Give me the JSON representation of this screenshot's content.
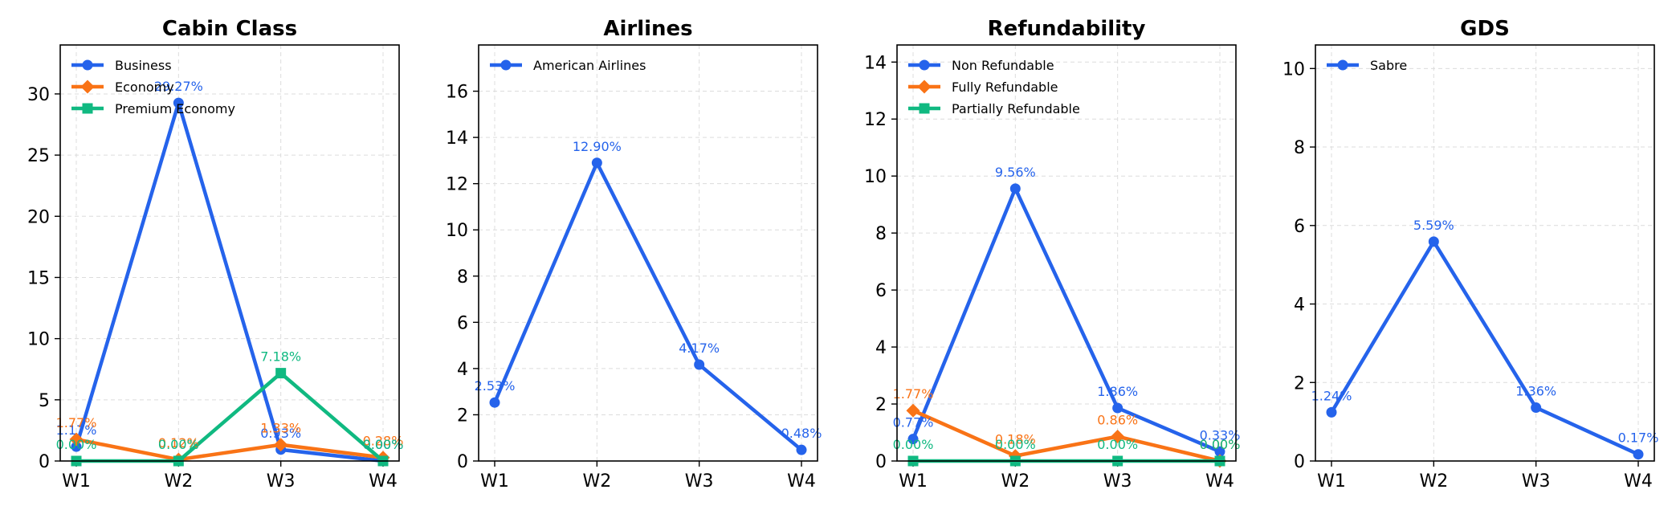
{
  "chart_data": [
    {
      "type": "line",
      "title": "Cabin Class",
      "categories": [
        "W1",
        "W2",
        "W3",
        "W4"
      ],
      "ylim": [
        0,
        34
      ],
      "yticks": [
        0,
        5,
        10,
        15,
        20,
        25,
        30
      ],
      "legend_position": "top-left",
      "series": [
        {
          "name": "Business",
          "values": [
            1.17,
            29.27,
            0.93,
            0.0
          ],
          "labels": [
            "1.17%",
            "29.27%",
            "0.93%",
            "0.00%"
          ],
          "color": "#2563eb",
          "marker": "circle"
        },
        {
          "name": "Economy",
          "values": [
            1.77,
            0.12,
            1.33,
            0.28
          ],
          "labels": [
            "1.77%",
            "0.12%",
            "1.33%",
            "0.28%"
          ],
          "color": "#f97316",
          "marker": "diamond"
        },
        {
          "name": "Premium Economy",
          "values": [
            0.0,
            0.0,
            7.18,
            0.0
          ],
          "labels": [
            "0.00%",
            "0.00%",
            "7.18%",
            "0.00%"
          ],
          "color": "#10b981",
          "marker": "square"
        }
      ]
    },
    {
      "type": "line",
      "title": "Airlines",
      "categories": [
        "W1",
        "W2",
        "W3",
        "W4"
      ],
      "ylim": [
        0,
        18
      ],
      "yticks": [
        0,
        2,
        4,
        6,
        8,
        10,
        12,
        14,
        16
      ],
      "legend_position": "top-left",
      "series": [
        {
          "name": "American Airlines",
          "values": [
            2.53,
            12.9,
            4.17,
            0.48
          ],
          "labels": [
            "2.53%",
            "12.90%",
            "4.17%",
            "0.48%"
          ],
          "color": "#2563eb",
          "marker": "circle"
        }
      ]
    },
    {
      "type": "line",
      "title": "Refundability",
      "categories": [
        "W1",
        "W2",
        "W3",
        "W4"
      ],
      "ylim": [
        0,
        14.6
      ],
      "yticks": [
        0,
        2,
        4,
        6,
        8,
        10,
        12,
        14
      ],
      "legend_position": "top-left",
      "series": [
        {
          "name": "Non Refundable",
          "values": [
            0.77,
            9.56,
            1.86,
            0.33
          ],
          "labels": [
            "0.77%",
            "9.56%",
            "1.86%",
            "0.33%"
          ],
          "color": "#2563eb",
          "marker": "circle"
        },
        {
          "name": "Fully Refundable",
          "values": [
            1.77,
            0.18,
            0.86,
            0.0
          ],
          "labels": [
            "1.77%",
            "0.18%",
            "0.86%",
            "0.00%"
          ],
          "color": "#f97316",
          "marker": "diamond"
        },
        {
          "name": "Partially Refundable",
          "values": [
            0.0,
            0.0,
            0.0,
            0.0
          ],
          "labels": [
            "0.00%",
            "0.00%",
            "0.00%",
            "0.00%"
          ],
          "color": "#10b981",
          "marker": "square"
        }
      ]
    },
    {
      "type": "line",
      "title": "GDS",
      "categories": [
        "W1",
        "W2",
        "W3",
        "W4"
      ],
      "ylim": [
        0,
        10.6
      ],
      "yticks": [
        0,
        2,
        4,
        6,
        8,
        10
      ],
      "legend_position": "top-left",
      "series": [
        {
          "name": "Sabre",
          "values": [
            1.24,
            5.59,
            1.36,
            0.17
          ],
          "labels": [
            "1.24%",
            "5.59%",
            "1.36%",
            "0.17%"
          ],
          "color": "#2563eb",
          "marker": "circle"
        }
      ]
    }
  ]
}
